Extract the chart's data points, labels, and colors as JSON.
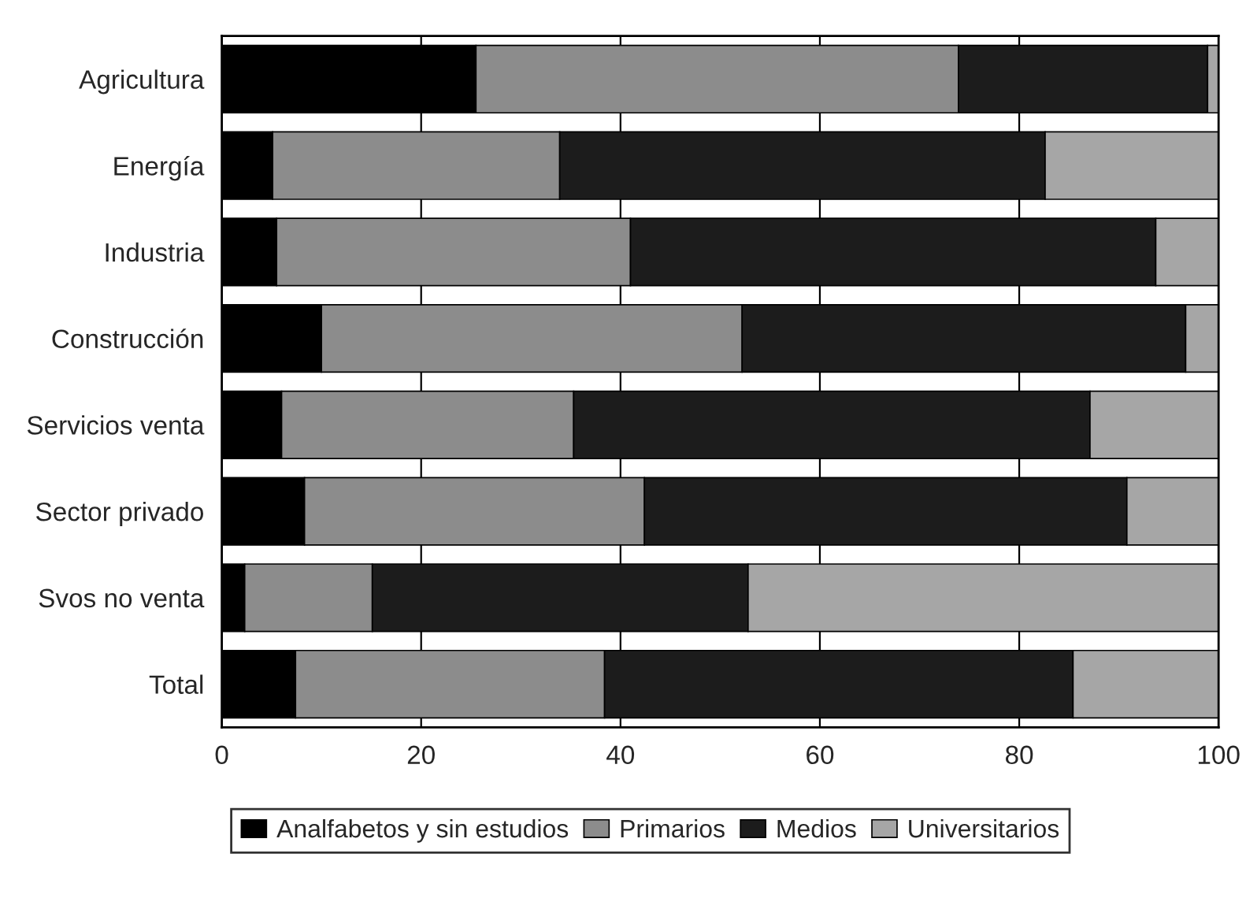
{
  "chart_data": {
    "type": "bar",
    "orientation": "horizontal",
    "stacked": true,
    "categories": [
      "Agricultura",
      "Energía",
      "Industria",
      "Construcción",
      "Servicios venta",
      "Sector privado",
      "Svos no venta",
      "Total"
    ],
    "series": [
      {
        "name": "Analfabetos y sin estudios",
        "color": "#000000",
        "values": [
          25.5,
          5.1,
          5.5,
          10.0,
          6.0,
          8.3,
          2.3,
          7.4
        ]
      },
      {
        "name": "Primarios",
        "color": "#8c8c8c",
        "values": [
          48.4,
          28.8,
          35.5,
          42.2,
          29.3,
          34.1,
          12.8,
          31.0
        ]
      },
      {
        "name": "Medios",
        "color": "#1c1c1c",
        "values": [
          25.0,
          48.7,
          52.7,
          44.5,
          51.8,
          48.4,
          37.7,
          47.0
        ]
      },
      {
        "name": "Universitarios",
        "color": "#a6a6a6",
        "values": [
          1.1,
          17.4,
          6.3,
          3.3,
          12.9,
          9.2,
          47.2,
          14.6
        ]
      }
    ],
    "xlim": [
      0,
      100
    ],
    "xticks": [
      0,
      20,
      40,
      60,
      80,
      100
    ],
    "grid": "x",
    "legend": "bottom"
  }
}
